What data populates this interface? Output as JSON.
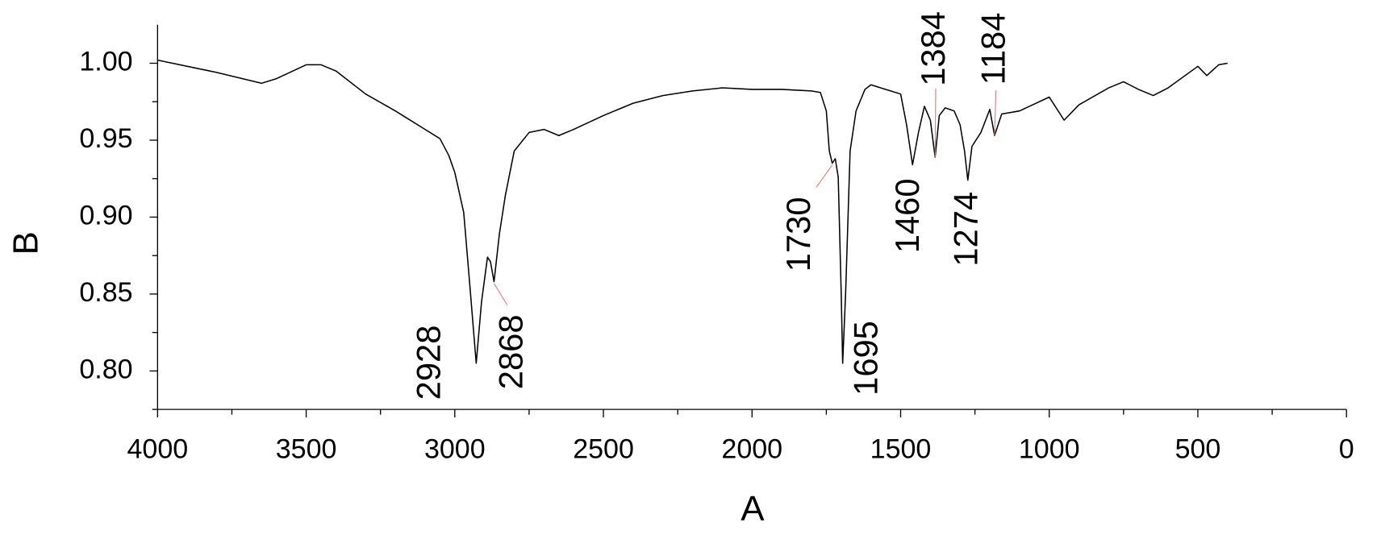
{
  "chart_data": {
    "type": "line",
    "x_label": "A",
    "y_label": "B",
    "xlim": [
      4000,
      0
    ],
    "xticks": [
      4000,
      3500,
      3000,
      2500,
      2000,
      1500,
      1000,
      500,
      0
    ],
    "ylim": [
      0.775,
      1.025
    ],
    "yticks": [
      {
        "value": 0.8,
        "label": "0.80"
      },
      0.85,
      {
        "value": 0.9,
        "label": "0.90"
      },
      0.95,
      {
        "value": 1.0,
        "label": "1.00"
      }
    ],
    "series": [
      {
        "color": "#000000",
        "x": [
          4000,
          3800,
          3650,
          3600,
          3500,
          3450,
          3400,
          3300,
          3200,
          3100,
          3050,
          3020,
          3000,
          2970,
          2950,
          2928,
          2910,
          2890,
          2880,
          2868,
          2850,
          2830,
          2800,
          2750,
          2700,
          2650,
          2600,
          2500,
          2400,
          2300,
          2200,
          2100,
          2000,
          1900,
          1800,
          1770,
          1750,
          1740,
          1730,
          1720,
          1710,
          1700,
          1695,
          1685,
          1670,
          1650,
          1620,
          1600,
          1550,
          1500,
          1480,
          1460,
          1440,
          1420,
          1400,
          1384,
          1370,
          1350,
          1320,
          1300,
          1285,
          1274,
          1260,
          1230,
          1200,
          1184,
          1160,
          1100,
          1000,
          950,
          900,
          800,
          750,
          700,
          650,
          600,
          500,
          470,
          430,
          400
        ],
        "values": [
          1.002,
          0.994,
          0.987,
          0.99,
          0.999,
          0.999,
          0.995,
          0.98,
          0.969,
          0.957,
          0.951,
          0.94,
          0.929,
          0.903,
          0.857,
          0.805,
          0.845,
          0.874,
          0.871,
          0.858,
          0.889,
          0.914,
          0.943,
          0.955,
          0.957,
          0.953,
          0.957,
          0.966,
          0.974,
          0.979,
          0.982,
          0.984,
          0.983,
          0.983,
          0.982,
          0.981,
          0.969,
          0.943,
          0.935,
          0.938,
          0.926,
          0.851,
          0.805,
          0.851,
          0.943,
          0.969,
          0.983,
          0.986,
          0.983,
          0.98,
          0.96,
          0.934,
          0.955,
          0.972,
          0.963,
          0.939,
          0.966,
          0.971,
          0.969,
          0.96,
          0.943,
          0.924,
          0.946,
          0.955,
          0.97,
          0.953,
          0.967,
          0.969,
          0.978,
          0.963,
          0.973,
          0.984,
          0.988,
          0.983,
          0.979,
          0.984,
          0.998,
          0.992,
          0.999,
          1.0
        ]
      }
    ],
    "annotations": [
      {
        "x": 2928,
        "y": 0.805
      },
      {
        "x": 2868,
        "y": 0.858
      },
      {
        "x": 1730,
        "y": 0.935
      },
      {
        "x": 1695,
        "y": 0.805
      },
      {
        "x": 1460,
        "y": 0.934
      },
      {
        "x": 1384,
        "y": 0.939
      },
      {
        "x": 1274,
        "y": 0.924
      },
      {
        "x": 1184,
        "y": 0.953
      }
    ]
  }
}
